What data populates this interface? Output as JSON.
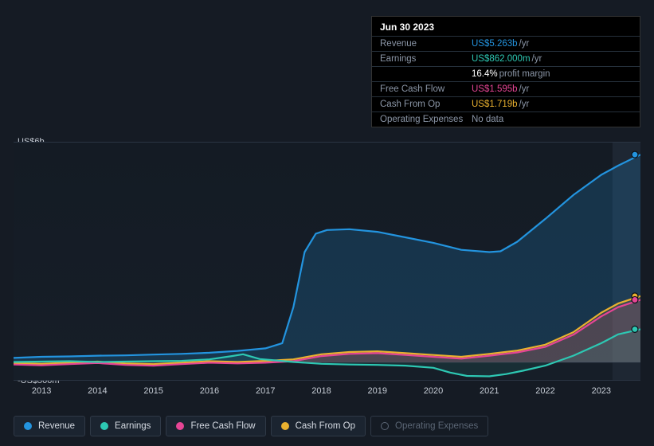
{
  "tooltip": {
    "date": "Jun 30 2023",
    "rows": [
      {
        "label": "Revenue",
        "value": "US$5.263b",
        "unit": "/yr",
        "color": "#2394df"
      },
      {
        "label": "Earnings",
        "value": "US$862.000m",
        "unit": "/yr",
        "color": "#2dc8b3"
      },
      {
        "label": "",
        "value": "16.4%",
        "unit": "profit margin",
        "color": "#ffffff"
      },
      {
        "label": "Free Cash Flow",
        "value": "US$1.595b",
        "unit": "/yr",
        "color": "#e64595"
      },
      {
        "label": "Cash From Op",
        "value": "US$1.719b",
        "unit": "/yr",
        "color": "#eab12f"
      },
      {
        "label": "Operating Expenses",
        "value": "No data",
        "unit": "",
        "color": "#8b96a7"
      }
    ]
  },
  "chart": {
    "type": "area-line",
    "background_color": "#151b24",
    "plot_bg_gradient": [
      "#141b24",
      "#161e28"
    ],
    "future_band_color": "#1e2733",
    "grid": false,
    "xlim": [
      2012.5,
      2023.7
    ],
    "ylim": [
      -500,
      6000
    ],
    "y_ticks": [
      {
        "v": 6000,
        "label": "US$6b"
      },
      {
        "v": 0,
        "label": "US$0"
      },
      {
        "v": -500,
        "label": "-US$500m"
      }
    ],
    "x_years": [
      2013,
      2014,
      2015,
      2016,
      2017,
      2018,
      2019,
      2020,
      2021,
      2022,
      2023
    ],
    "future_start": 2023.2,
    "marker_x": 2023.6,
    "series": [
      {
        "key": "revenue",
        "name": "Revenue",
        "color": "#2394df",
        "fill": "rgba(35,148,223,0.20)",
        "points": [
          [
            2012.5,
            120
          ],
          [
            2013,
            150
          ],
          [
            2013.5,
            160
          ],
          [
            2014,
            180
          ],
          [
            2014.5,
            190
          ],
          [
            2015,
            210
          ],
          [
            2015.5,
            230
          ],
          [
            2016,
            260
          ],
          [
            2016.5,
            310
          ],
          [
            2017,
            380
          ],
          [
            2017.3,
            520
          ],
          [
            2017.5,
            1500
          ],
          [
            2017.7,
            3000
          ],
          [
            2017.9,
            3500
          ],
          [
            2018.1,
            3600
          ],
          [
            2018.5,
            3620
          ],
          [
            2019,
            3550
          ],
          [
            2019.5,
            3400
          ],
          [
            2020,
            3250
          ],
          [
            2020.5,
            3060
          ],
          [
            2021,
            3000
          ],
          [
            2021.2,
            3020
          ],
          [
            2021.5,
            3280
          ],
          [
            2022,
            3900
          ],
          [
            2022.5,
            4550
          ],
          [
            2023,
            5100
          ],
          [
            2023.3,
            5350
          ],
          [
            2023.7,
            5650
          ]
        ]
      },
      {
        "key": "cash_from_op",
        "name": "Cash From Op",
        "color": "#eab12f",
        "fill": "rgba(234,177,47,0.14)",
        "points": [
          [
            2012.5,
            -20
          ],
          [
            2013,
            -40
          ],
          [
            2013.5,
            -10
          ],
          [
            2014,
            20
          ],
          [
            2014.5,
            -30
          ],
          [
            2015,
            -50
          ],
          [
            2015.5,
            -10
          ],
          [
            2016,
            30
          ],
          [
            2016.5,
            10
          ],
          [
            2017,
            40
          ],
          [
            2017.5,
            80
          ],
          [
            2018,
            220
          ],
          [
            2018.5,
            280
          ],
          [
            2019,
            300
          ],
          [
            2019.5,
            250
          ],
          [
            2020,
            200
          ],
          [
            2020.5,
            150
          ],
          [
            2021,
            230
          ],
          [
            2021.5,
            320
          ],
          [
            2022,
            480
          ],
          [
            2022.5,
            820
          ],
          [
            2023,
            1350
          ],
          [
            2023.3,
            1600
          ],
          [
            2023.7,
            1800
          ]
        ]
      },
      {
        "key": "fcf",
        "name": "Free Cash Flow",
        "color": "#e64595",
        "fill": "rgba(230,69,149,0.14)",
        "points": [
          [
            2012.5,
            -60
          ],
          [
            2013,
            -80
          ],
          [
            2013.5,
            -50
          ],
          [
            2014,
            -20
          ],
          [
            2014.5,
            -70
          ],
          [
            2015,
            -90
          ],
          [
            2015.5,
            -50
          ],
          [
            2016,
            -10
          ],
          [
            2016.5,
            -30
          ],
          [
            2017,
            -10
          ],
          [
            2017.5,
            30
          ],
          [
            2018,
            170
          ],
          [
            2018.5,
            230
          ],
          [
            2019,
            250
          ],
          [
            2019.5,
            200
          ],
          [
            2020,
            150
          ],
          [
            2020.5,
            100
          ],
          [
            2021,
            180
          ],
          [
            2021.5,
            270
          ],
          [
            2022,
            420
          ],
          [
            2022.5,
            750
          ],
          [
            2023,
            1250
          ],
          [
            2023.3,
            1500
          ],
          [
            2023.7,
            1700
          ]
        ]
      },
      {
        "key": "earnings",
        "name": "Earnings",
        "color": "#2dc8b3",
        "fill": "rgba(45,200,179,0.10)",
        "points": [
          [
            2012.5,
            10
          ],
          [
            2013,
            20
          ],
          [
            2013.5,
            30
          ],
          [
            2014,
            10
          ],
          [
            2014.5,
            20
          ],
          [
            2015,
            30
          ],
          [
            2015.5,
            40
          ],
          [
            2016,
            80
          ],
          [
            2016.4,
            170
          ],
          [
            2016.6,
            220
          ],
          [
            2016.9,
            90
          ],
          [
            2017.2,
            50
          ],
          [
            2017.5,
            10
          ],
          [
            2018,
            -40
          ],
          [
            2018.5,
            -60
          ],
          [
            2019,
            -70
          ],
          [
            2019.5,
            -90
          ],
          [
            2020,
            -150
          ],
          [
            2020.3,
            -280
          ],
          [
            2020.6,
            -370
          ],
          [
            2021,
            -380
          ],
          [
            2021.3,
            -320
          ],
          [
            2021.6,
            -230
          ],
          [
            2022,
            -90
          ],
          [
            2022.5,
            180
          ],
          [
            2023,
            520
          ],
          [
            2023.3,
            760
          ],
          [
            2023.7,
            900
          ]
        ]
      }
    ],
    "legend": [
      {
        "key": "revenue",
        "label": "Revenue",
        "color": "#2394df",
        "active": true
      },
      {
        "key": "earnings",
        "label": "Earnings",
        "color": "#2dc8b3",
        "active": true
      },
      {
        "key": "fcf",
        "label": "Free Cash Flow",
        "color": "#e64595",
        "active": true
      },
      {
        "key": "cfo",
        "label": "Cash From Op",
        "color": "#eab12f",
        "active": true
      },
      {
        "key": "opex",
        "label": "Operating Expenses",
        "color": "#5b6675",
        "active": false
      }
    ],
    "line_width": 2.2,
    "label_fontsize": 11
  }
}
